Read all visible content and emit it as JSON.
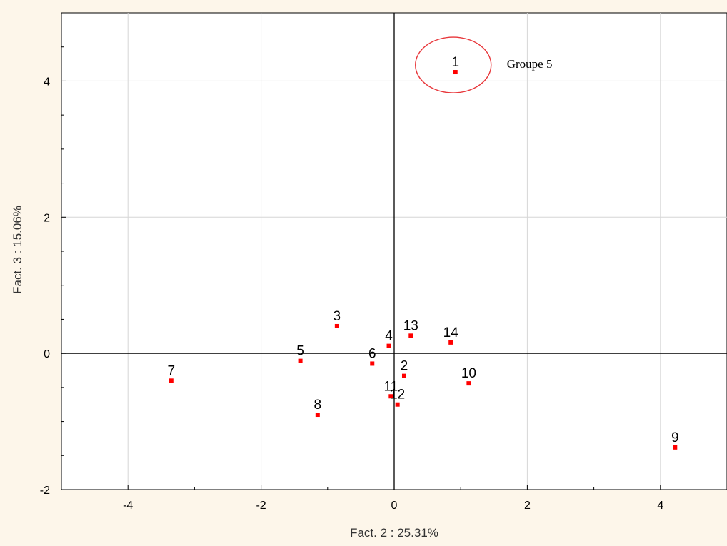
{
  "chart_data": {
    "type": "scatter",
    "xlabel": "Fact. 2 : 25.31%",
    "ylabel": "Fact. 3 : 15.06%",
    "xlim": [
      -5,
      5
    ],
    "ylim": [
      -2,
      5
    ],
    "xticks": [
      -4,
      -2,
      0,
      2,
      4
    ],
    "yticks": [
      -2,
      0,
      2,
      4
    ],
    "grid": true,
    "point_color": "#ff0000",
    "points": [
      {
        "label": "1",
        "x": 0.92,
        "y": 4.13
      },
      {
        "label": "2",
        "x": 0.15,
        "y": -0.33
      },
      {
        "label": "3",
        "x": -0.86,
        "y": 0.4
      },
      {
        "label": "4",
        "x": -0.08,
        "y": 0.11
      },
      {
        "label": "5",
        "x": -1.41,
        "y": -0.11
      },
      {
        "label": "6",
        "x": -0.33,
        "y": -0.15
      },
      {
        "label": "7",
        "x": -3.35,
        "y": -0.4
      },
      {
        "label": "8",
        "x": -1.15,
        "y": -0.9
      },
      {
        "label": "9",
        "x": 4.22,
        "y": -1.38
      },
      {
        "label": "10",
        "x": 1.12,
        "y": -0.44
      },
      {
        "label": "11",
        "x": -0.05,
        "y": -0.63
      },
      {
        "label": "12",
        "x": 0.05,
        "y": -0.75
      },
      {
        "label": "13",
        "x": 0.25,
        "y": 0.26
      },
      {
        "label": "14",
        "x": 0.85,
        "y": 0.16
      }
    ],
    "annotation": {
      "text": "Groupe 5",
      "circled_point": "1",
      "circle_color": "#e8363a"
    }
  }
}
